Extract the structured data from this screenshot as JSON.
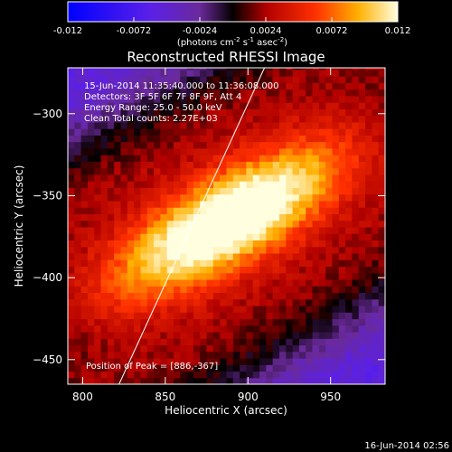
{
  "chart_data": {
    "type": "heatmap",
    "title": "Reconstructed RHESSI Image",
    "xlabel": "Heliocentric X (arcsec)",
    "ylabel": "Heliocentric Y (arcsec)",
    "xlim": [
      791,
      983
    ],
    "ylim": [
      -465,
      -272
    ],
    "xticks": [
      800,
      850,
      900,
      950
    ],
    "yticks": [
      -300,
      -350,
      -400,
      -450
    ],
    "colorbar": {
      "range": [
        -0.012,
        0.012
      ],
      "ticks": [
        "-0.012",
        "-0.0072",
        "-0.0024",
        "0.0024",
        "0.0072",
        "0.012"
      ],
      "tick_values": [
        -0.012,
        -0.0072,
        -0.0024,
        0.0024,
        0.0072,
        0.012
      ],
      "label_prefix": "(photons cm",
      "label_exp1": "-2",
      "label_mid": " s",
      "label_exp2": "-1",
      "label_mid2": " asec",
      "label_exp3": "-2",
      "label_suffix": ")"
    },
    "annotations": [
      "15-Jun-2014 11:35:40.000 to 11:36:08.000",
      "Detectors: 3F 5F 6F 7F 8F 9F, Att 4",
      "Energy Range: 25.0 - 50.0 keV",
      "Clean     Total counts: 2.27E+03"
    ],
    "peak_label": "Position of Peak = [886,-367]",
    "peak": [
      886,
      -367
    ],
    "limb_line": [
      [
        822,
        -465
      ],
      [
        910,
        -272
      ]
    ]
  },
  "footer": {
    "timestamp": "16-Jun-2014 02:56"
  }
}
